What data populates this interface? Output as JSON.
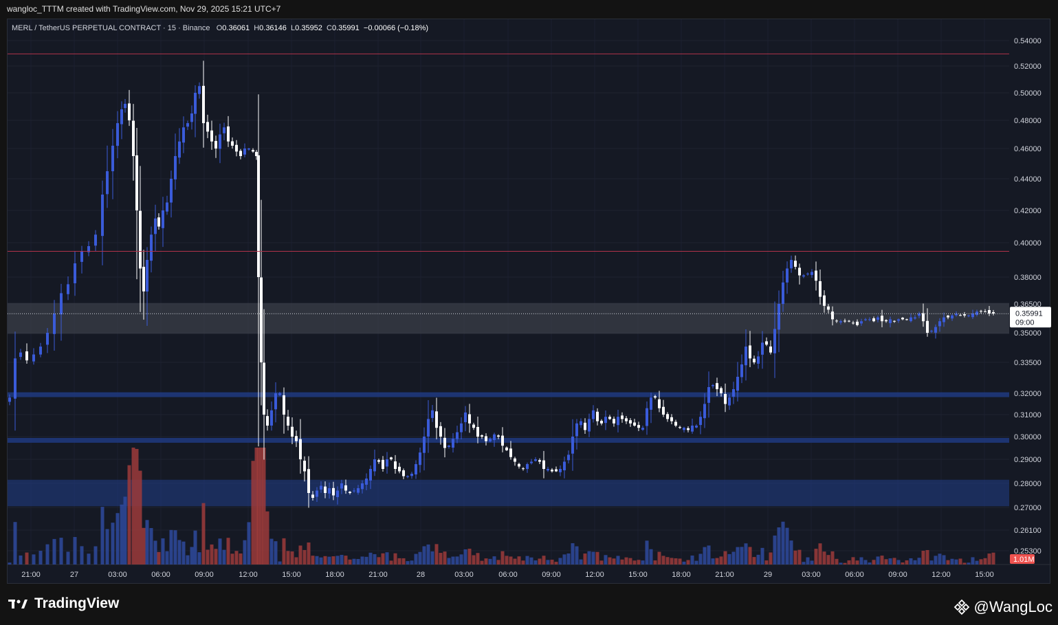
{
  "header": {
    "caption": "wangloc_TTTM created with TradingView.com, Nov 29, 2025 15:21 UTC+7"
  },
  "legend": {
    "symbol": "MERL / TetherUS PERPETUAL CONTRACT · 15 · Binance",
    "o_label": "O",
    "o": "0.36061",
    "h_label": "H",
    "h": "0.36146",
    "l_label": "L",
    "l": "0.35952",
    "c_label": "C",
    "c": "0.35991",
    "change": "−0.00066 (−0.18%)"
  },
  "price_tag": {
    "price": "0.35991",
    "countdown": "09:00"
  },
  "volume_tag": "1.01M",
  "footer": {
    "brand": "TradingView",
    "handle": "@WangLoc"
  },
  "colors": {
    "up": "#3a5bd9",
    "down": "#ffffff",
    "vol_up": "#2e4a9e",
    "vol_down": "#9c3b3b",
    "resistance": "#b2334a",
    "zone": "#1f3a80",
    "background": "#151924"
  },
  "chart_data": {
    "type": "candlestick",
    "symbol": "MERL/USDT Perpetual",
    "interval": "15",
    "exchange": "Binance",
    "y_ticks": [
      "0.54000",
      "0.52000",
      "0.50000",
      "0.48000",
      "0.46000",
      "0.44000",
      "0.42000",
      "0.40000",
      "0.38000",
      "0.36500",
      "0.35000",
      "0.33500",
      "0.32000",
      "0.31000",
      "0.30000",
      "0.29000",
      "0.28000",
      "0.27000",
      "0.26100",
      "0.25300"
    ],
    "x_ticks": [
      "21:00",
      "27",
      "03:00",
      "06:00",
      "09:00",
      "12:00",
      "15:00",
      "18:00",
      "21:00",
      "28",
      "03:00",
      "06:00",
      "09:00",
      "12:00",
      "15:00",
      "18:00",
      "21:00",
      "29",
      "03:00",
      "06:00",
      "09:00",
      "12:00",
      "15:00"
    ],
    "last_price": 0.35991,
    "horizontal_lines": [
      0.5295,
      0.395
    ],
    "highlight_zone": [
      0.3495,
      0.3655
    ],
    "support_lines": [
      0.3195,
      0.2985
    ],
    "support_zone": [
      0.2705,
      0.2815
    ],
    "price_path": [
      [
        0,
        0.318
      ],
      [
        8,
        0.337
      ],
      [
        16,
        0.34
      ],
      [
        25,
        0.336
      ],
      [
        35,
        0.339
      ],
      [
        45,
        0.343
      ],
      [
        55,
        0.35
      ],
      [
        65,
        0.36
      ],
      [
        75,
        0.371
      ],
      [
        85,
        0.376
      ],
      [
        95,
        0.388
      ],
      [
        105,
        0.395
      ],
      [
        115,
        0.398
      ],
      [
        125,
        0.405
      ],
      [
        135,
        0.43
      ],
      [
        142,
        0.445
      ],
      [
        150,
        0.462
      ],
      [
        157,
        0.478
      ],
      [
        163,
        0.488
      ],
      [
        168,
        0.492
      ],
      [
        174,
        0.48
      ],
      [
        180,
        0.455
      ],
      [
        185,
        0.42
      ],
      [
        190,
        0.385
      ],
      [
        195,
        0.372
      ],
      [
        200,
        0.39
      ],
      [
        206,
        0.405
      ],
      [
        212,
        0.415
      ],
      [
        217,
        0.41
      ],
      [
        223,
        0.42
      ],
      [
        229,
        0.425
      ],
      [
        235,
        0.44
      ],
      [
        241,
        0.455
      ],
      [
        247,
        0.465
      ],
      [
        253,
        0.475
      ],
      [
        259,
        0.478
      ],
      [
        265,
        0.485
      ],
      [
        270,
        0.5
      ],
      [
        276,
        0.505
      ],
      [
        282,
        0.478
      ],
      [
        288,
        0.472
      ],
      [
        294,
        0.465
      ],
      [
        300,
        0.46
      ],
      [
        306,
        0.47
      ],
      [
        312,
        0.475
      ],
      [
        318,
        0.465
      ],
      [
        324,
        0.462
      ],
      [
        330,
        0.458
      ],
      [
        336,
        0.455
      ],
      [
        342,
        0.46
      ],
      [
        348,
        0.46
      ],
      [
        354,
        0.458
      ],
      [
        359,
        0.455
      ],
      [
        362,
        0.38
      ],
      [
        366,
        0.335
      ],
      [
        370,
        0.31
      ],
      [
        375,
        0.305
      ],
      [
        381,
        0.312
      ],
      [
        387,
        0.32
      ],
      [
        393,
        0.32
      ],
      [
        399,
        0.31
      ],
      [
        405,
        0.305
      ],
      [
        411,
        0.3
      ],
      [
        417,
        0.298
      ],
      [
        423,
        0.29
      ],
      [
        429,
        0.285
      ],
      [
        435,
        0.276
      ],
      [
        441,
        0.274
      ],
      [
        447,
        0.277
      ],
      [
        453,
        0.279
      ],
      [
        459,
        0.276
      ],
      [
        465,
        0.278
      ],
      [
        471,
        0.275
      ],
      [
        477,
        0.277
      ],
      [
        483,
        0.28
      ],
      [
        489,
        0.277
      ],
      [
        495,
        0.276
      ],
      [
        501,
        0.277
      ],
      [
        507,
        0.278
      ],
      [
        513,
        0.28
      ],
      [
        519,
        0.282
      ],
      [
        525,
        0.286
      ],
      [
        531,
        0.29
      ],
      [
        537,
        0.289
      ],
      [
        543,
        0.286
      ],
      [
        549,
        0.29
      ],
      [
        555,
        0.29
      ],
      [
        561,
        0.286
      ],
      [
        567,
        0.285
      ],
      [
        573,
        0.283
      ],
      [
        579,
        0.283
      ],
      [
        585,
        0.284
      ],
      [
        591,
        0.288
      ],
      [
        597,
        0.293
      ],
      [
        603,
        0.3
      ],
      [
        609,
        0.308
      ],
      [
        615,
        0.312
      ],
      [
        621,
        0.304
      ],
      [
        627,
        0.3
      ],
      [
        633,
        0.295
      ],
      [
        639,
        0.296
      ],
      [
        645,
        0.299
      ],
      [
        651,
        0.302
      ],
      [
        657,
        0.306
      ],
      [
        663,
        0.311
      ],
      [
        669,
        0.306
      ],
      [
        675,
        0.304
      ],
      [
        681,
        0.3
      ],
      [
        687,
        0.3
      ],
      [
        693,
        0.298
      ],
      [
        699,
        0.299
      ],
      [
        705,
        0.301
      ],
      [
        711,
        0.3
      ],
      [
        717,
        0.296
      ],
      [
        723,
        0.294
      ],
      [
        729,
        0.291
      ],
      [
        735,
        0.289
      ],
      [
        741,
        0.287
      ],
      [
        747,
        0.286
      ],
      [
        753,
        0.288
      ],
      [
        759,
        0.289
      ],
      [
        765,
        0.29
      ],
      [
        771,
        0.289
      ],
      [
        777,
        0.286
      ],
      [
        783,
        0.286
      ],
      [
        789,
        0.285
      ],
      [
        795,
        0.285
      ],
      [
        801,
        0.286
      ],
      [
        807,
        0.289
      ],
      [
        813,
        0.292
      ],
      [
        819,
        0.3
      ],
      [
        825,
        0.306
      ],
      [
        831,
        0.307
      ],
      [
        837,
        0.303
      ],
      [
        843,
        0.308
      ],
      [
        849,
        0.312
      ],
      [
        855,
        0.307
      ],
      [
        861,
        0.306
      ],
      [
        867,
        0.309
      ],
      [
        873,
        0.308
      ],
      [
        879,
        0.306
      ],
      [
        885,
        0.309
      ],
      [
        891,
        0.308
      ],
      [
        897,
        0.307
      ],
      [
        903,
        0.306
      ],
      [
        909,
        0.305
      ],
      [
        915,
        0.304
      ],
      [
        921,
        0.304
      ],
      [
        927,
        0.313
      ],
      [
        933,
        0.318
      ],
      [
        939,
        0.318
      ],
      [
        945,
        0.313
      ],
      [
        951,
        0.31
      ],
      [
        957,
        0.308
      ],
      [
        963,
        0.307
      ],
      [
        969,
        0.305
      ],
      [
        975,
        0.304
      ],
      [
        981,
        0.304
      ],
      [
        987,
        0.303
      ],
      [
        993,
        0.305
      ],
      [
        999,
        0.305
      ],
      [
        1005,
        0.309
      ],
      [
        1011,
        0.315
      ],
      [
        1017,
        0.323
      ],
      [
        1023,
        0.324
      ],
      [
        1029,
        0.322
      ],
      [
        1035,
        0.32
      ],
      [
        1041,
        0.315
      ],
      [
        1047,
        0.318
      ],
      [
        1053,
        0.322
      ],
      [
        1059,
        0.328
      ],
      [
        1065,
        0.334
      ],
      [
        1071,
        0.343
      ],
      [
        1077,
        0.337
      ],
      [
        1083,
        0.335
      ],
      [
        1089,
        0.338
      ],
      [
        1095,
        0.345
      ],
      [
        1101,
        0.344
      ],
      [
        1107,
        0.34
      ],
      [
        1113,
        0.352
      ],
      [
        1119,
        0.365
      ],
      [
        1125,
        0.377
      ],
      [
        1131,
        0.385
      ],
      [
        1137,
        0.39
      ],
      [
        1143,
        0.386
      ],
      [
        1149,
        0.381
      ],
      [
        1155,
        0.381
      ],
      [
        1161,
        0.382
      ],
      [
        1167,
        0.383
      ],
      [
        1173,
        0.378
      ],
      [
        1179,
        0.369
      ],
      [
        1185,
        0.364
      ],
      [
        1191,
        0.362
      ],
      [
        1197,
        0.357
      ],
      [
        1203,
        0.356
      ],
      [
        1209,
        0.356
      ],
      [
        1215,
        0.356
      ],
      [
        1221,
        0.356
      ],
      [
        1227,
        0.355
      ],
      [
        1233,
        0.354
      ],
      [
        1239,
        0.356
      ],
      [
        1245,
        0.357
      ],
      [
        1251,
        0.357
      ],
      [
        1257,
        0.356
      ],
      [
        1263,
        0.358
      ],
      [
        1269,
        0.356
      ],
      [
        1275,
        0.356
      ],
      [
        1281,
        0.357
      ],
      [
        1287,
        0.356
      ],
      [
        1293,
        0.357
      ],
      [
        1299,
        0.357
      ],
      [
        1305,
        0.357
      ],
      [
        1311,
        0.358
      ],
      [
        1317,
        0.358
      ],
      [
        1323,
        0.36
      ],
      [
        1329,
        0.356
      ],
      [
        1335,
        0.35
      ],
      [
        1341,
        0.351
      ],
      [
        1347,
        0.353
      ],
      [
        1353,
        0.356
      ],
      [
        1359,
        0.358
      ],
      [
        1365,
        0.358
      ],
      [
        1371,
        0.359
      ],
      [
        1377,
        0.36
      ],
      [
        1383,
        0.359
      ],
      [
        1389,
        0.359
      ],
      [
        1395,
        0.359
      ],
      [
        1401,
        0.36
      ],
      [
        1407,
        0.361
      ],
      [
        1413,
        0.361
      ],
      [
        1419,
        0.361
      ],
      [
        1425,
        0.36
      ],
      [
        1431,
        0.36
      ]
    ],
    "volume_peaks_millions": [
      [
        168,
        3.2
      ],
      [
        178,
        5.6
      ],
      [
        358,
        6.8
      ],
      [
        364,
        9.4
      ],
      [
        1130,
        1.6
      ],
      [
        1431,
        1.01
      ]
    ],
    "volume_axis_max_millions": 12
  }
}
